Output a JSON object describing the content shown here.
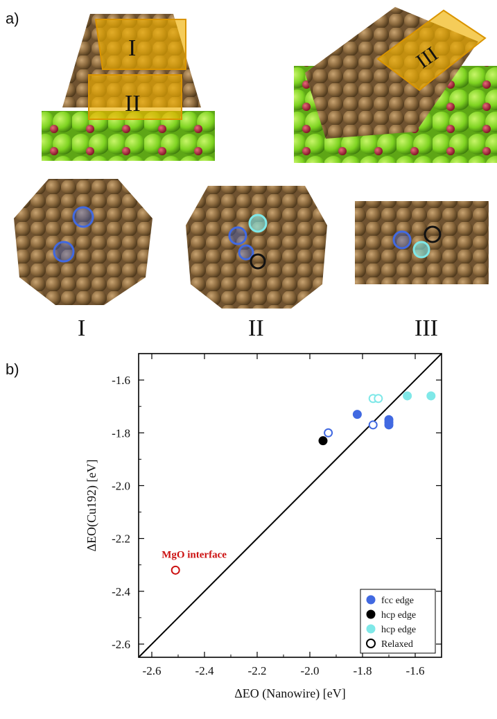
{
  "panel_a": {
    "label": "a)",
    "region_labels": [
      "I",
      "II",
      "III"
    ],
    "bottom_labels": [
      "I",
      "II",
      "III"
    ],
    "colors": {
      "copper": "#8c6a3e",
      "facet": "#f0b100",
      "mgo_mg": "#7ed321",
      "mgo_o": "#b0243a",
      "fcc_marker": "#4169e1",
      "hcp_black_marker": "#111111",
      "hcp_cyan_marker": "#7fe8e8"
    }
  },
  "panel_b": {
    "label": "b)"
  },
  "chart_data": {
    "type": "scatter",
    "xlabel": "ΔE_O (Nanowire) [eV]",
    "ylabel": "ΔE_O(Cu_192) [eV]",
    "xlim": [
      -2.65,
      -1.5
    ],
    "ylim": [
      -2.65,
      -1.5
    ],
    "xticks": [
      -2.6,
      -2.4,
      -2.2,
      -2.0,
      -1.8,
      -1.6
    ],
    "yticks": [
      -2.6,
      -2.4,
      -2.2,
      -2.0,
      -1.8,
      -1.6
    ],
    "tick_labels": [
      "-2.6",
      "-2.4",
      "-2.2",
      "-2.0",
      "-1.8",
      "-1.6"
    ],
    "diagonal": [
      [
        -2.65,
        -2.65
      ],
      [
        -1.5,
        -1.5
      ]
    ],
    "legend_position": "bottom-right",
    "series": [
      {
        "name": "fcc edge",
        "color": "#4169e1",
        "filled": true,
        "points": [
          [
            -1.82,
            -1.73
          ],
          [
            -1.7,
            -1.75
          ],
          [
            -1.7,
            -1.76
          ],
          [
            -1.7,
            -1.77
          ]
        ]
      },
      {
        "name": "hcp edge",
        "color": "#000000",
        "filled": true,
        "points": [
          [
            -1.95,
            -1.83
          ]
        ]
      },
      {
        "name": "hcp edge",
        "color": "#7fe8e8",
        "filled": true,
        "points": [
          [
            -1.63,
            -1.66
          ],
          [
            -1.54,
            -1.66
          ]
        ]
      },
      {
        "name": "Relaxed",
        "color": "#000000",
        "filled": false,
        "points": []
      }
    ],
    "relaxed_points": [
      {
        "x": -1.93,
        "y": -1.8,
        "color": "#4169e1"
      },
      {
        "x": -1.76,
        "y": -1.77,
        "color": "#4169e1"
      },
      {
        "x": -1.76,
        "y": -1.67,
        "color": "#7fe8e8"
      },
      {
        "x": -1.74,
        "y": -1.67,
        "color": "#7fe8e8"
      },
      {
        "x": -2.51,
        "y": -2.32,
        "color": "#cc1111"
      }
    ],
    "annotation": {
      "text": "MgO interface",
      "x": -2.51,
      "y": -2.32,
      "color": "#cc1111"
    }
  }
}
